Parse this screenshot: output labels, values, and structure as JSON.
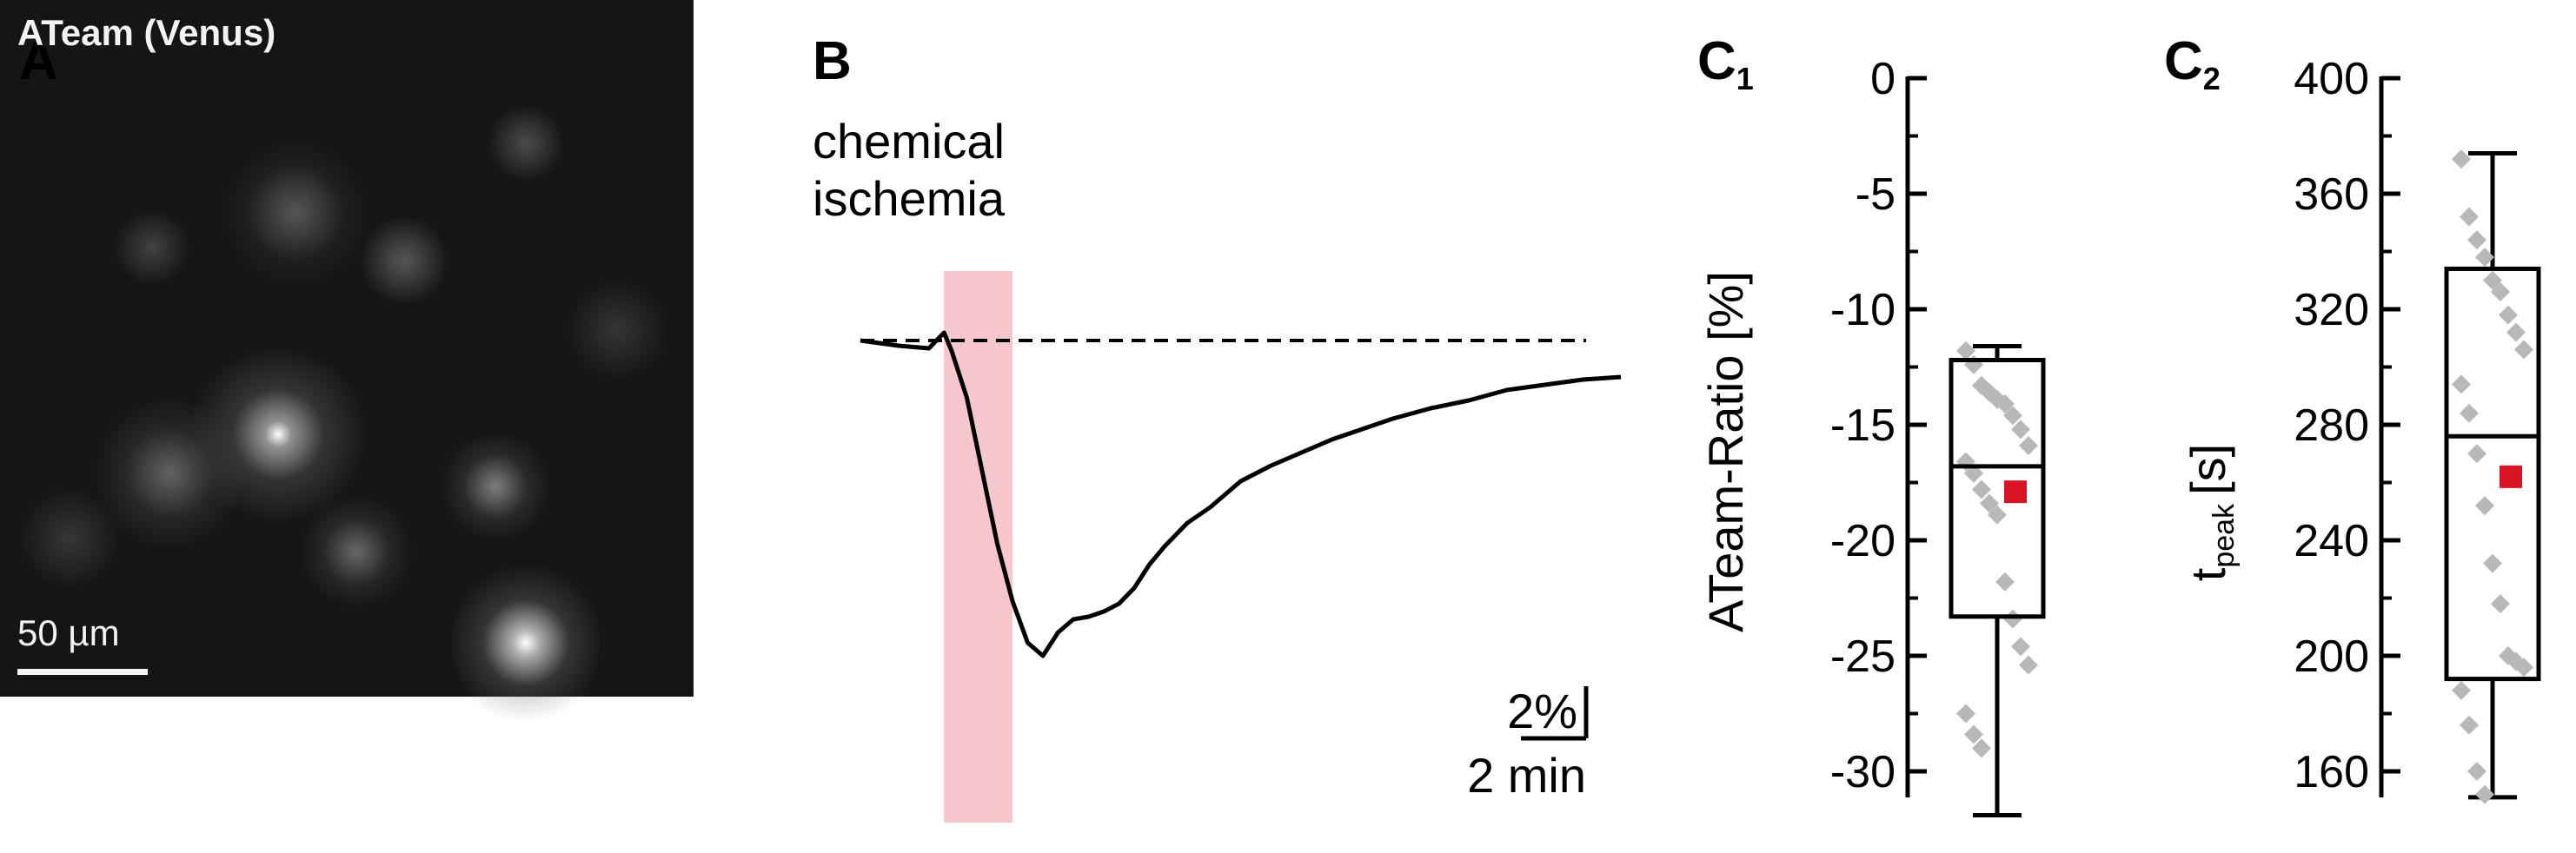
{
  "panels": {
    "a": "A",
    "b": "B",
    "c1": "C",
    "c1_sub": "1",
    "c2": "C",
    "c2_sub": "2"
  },
  "micrograph": {
    "title": "ATeam (Venus)",
    "scale_label": "50 µm"
  },
  "trace_panel": {
    "stimulus_label_1": "chemical",
    "stimulus_label_2": "ischemia",
    "scale_y_label": "2%",
    "scale_x_label": "2 min"
  },
  "colors": {
    "trace": "#000000",
    "stimulus_band": "#f5c6cc",
    "points": "#b8b8b8",
    "mean_marker": "#d81425"
  },
  "chart_data": [
    {
      "type": "line",
      "title": "",
      "xlabel": "",
      "ylabel": "",
      "x_unit": "min",
      "y_unit": "%",
      "baseline": 0,
      "stimulus_interval": [
        1.1,
        2.0
      ],
      "x": [
        0.0,
        0.5,
        0.9,
        1.1,
        1.2,
        1.4,
        1.6,
        1.8,
        2.0,
        2.2,
        2.4,
        2.6,
        2.8,
        3.0,
        3.2,
        3.4,
        3.6,
        3.8,
        4.0,
        4.3,
        4.6,
        5.0,
        5.4,
        5.8,
        6.2,
        6.6,
        7.0,
        7.5,
        8.0,
        8.5,
        9.0,
        9.5,
        10.0
      ],
      "y": [
        0.0,
        -0.2,
        -0.3,
        0.3,
        -0.4,
        -2.2,
        -5.0,
        -7.8,
        -10.0,
        -11.6,
        -12.1,
        -11.2,
        -10.7,
        -10.6,
        -10.4,
        -10.1,
        -9.5,
        -8.6,
        -7.9,
        -7.0,
        -6.4,
        -5.4,
        -4.8,
        -4.3,
        -3.8,
        -3.4,
        -3.0,
        -2.6,
        -2.3,
        -1.9,
        -1.7,
        -1.5,
        -1.4
      ]
    },
    {
      "type": "box",
      "title": "",
      "xlabel": "",
      "ylabel": "ATeam-Ratio [%]",
      "ylim": [
        -32,
        0
      ],
      "yticks": [
        0,
        -5,
        -10,
        -15,
        -20,
        -25,
        -30
      ],
      "box": {
        "min": -31.9,
        "q1": -23.3,
        "median": -16.8,
        "q3": -12.2,
        "max": -11.6
      },
      "mean": -17.9,
      "points": [
        -11.8,
        -12.4,
        -13.3,
        -13.6,
        -13.9,
        -14.1,
        -14.6,
        -15.2,
        -15.9,
        -16.6,
        -17.1,
        -17.8,
        -18.4,
        -18.9,
        -21.8,
        -23.4,
        -24.6,
        -25.4,
        -27.5,
        -28.4,
        -29.0
      ]
    },
    {
      "type": "box",
      "title": "",
      "xlabel": "",
      "ylabel": "t",
      "ylabel_sub": "peak",
      "ylabel_unit": "[s]",
      "ylim": [
        148,
        400
      ],
      "yticks": [
        160,
        200,
        240,
        280,
        320,
        360,
        400
      ],
      "box": {
        "min": 151,
        "q1": 192,
        "median": 276,
        "q3": 334,
        "max": 374
      },
      "mean": 262,
      "points": [
        372,
        352,
        344,
        338,
        330,
        326,
        318,
        312,
        306,
        294,
        284,
        270,
        252,
        232,
        218,
        200,
        198,
        196,
        188,
        176,
        160,
        152
      ]
    }
  ]
}
